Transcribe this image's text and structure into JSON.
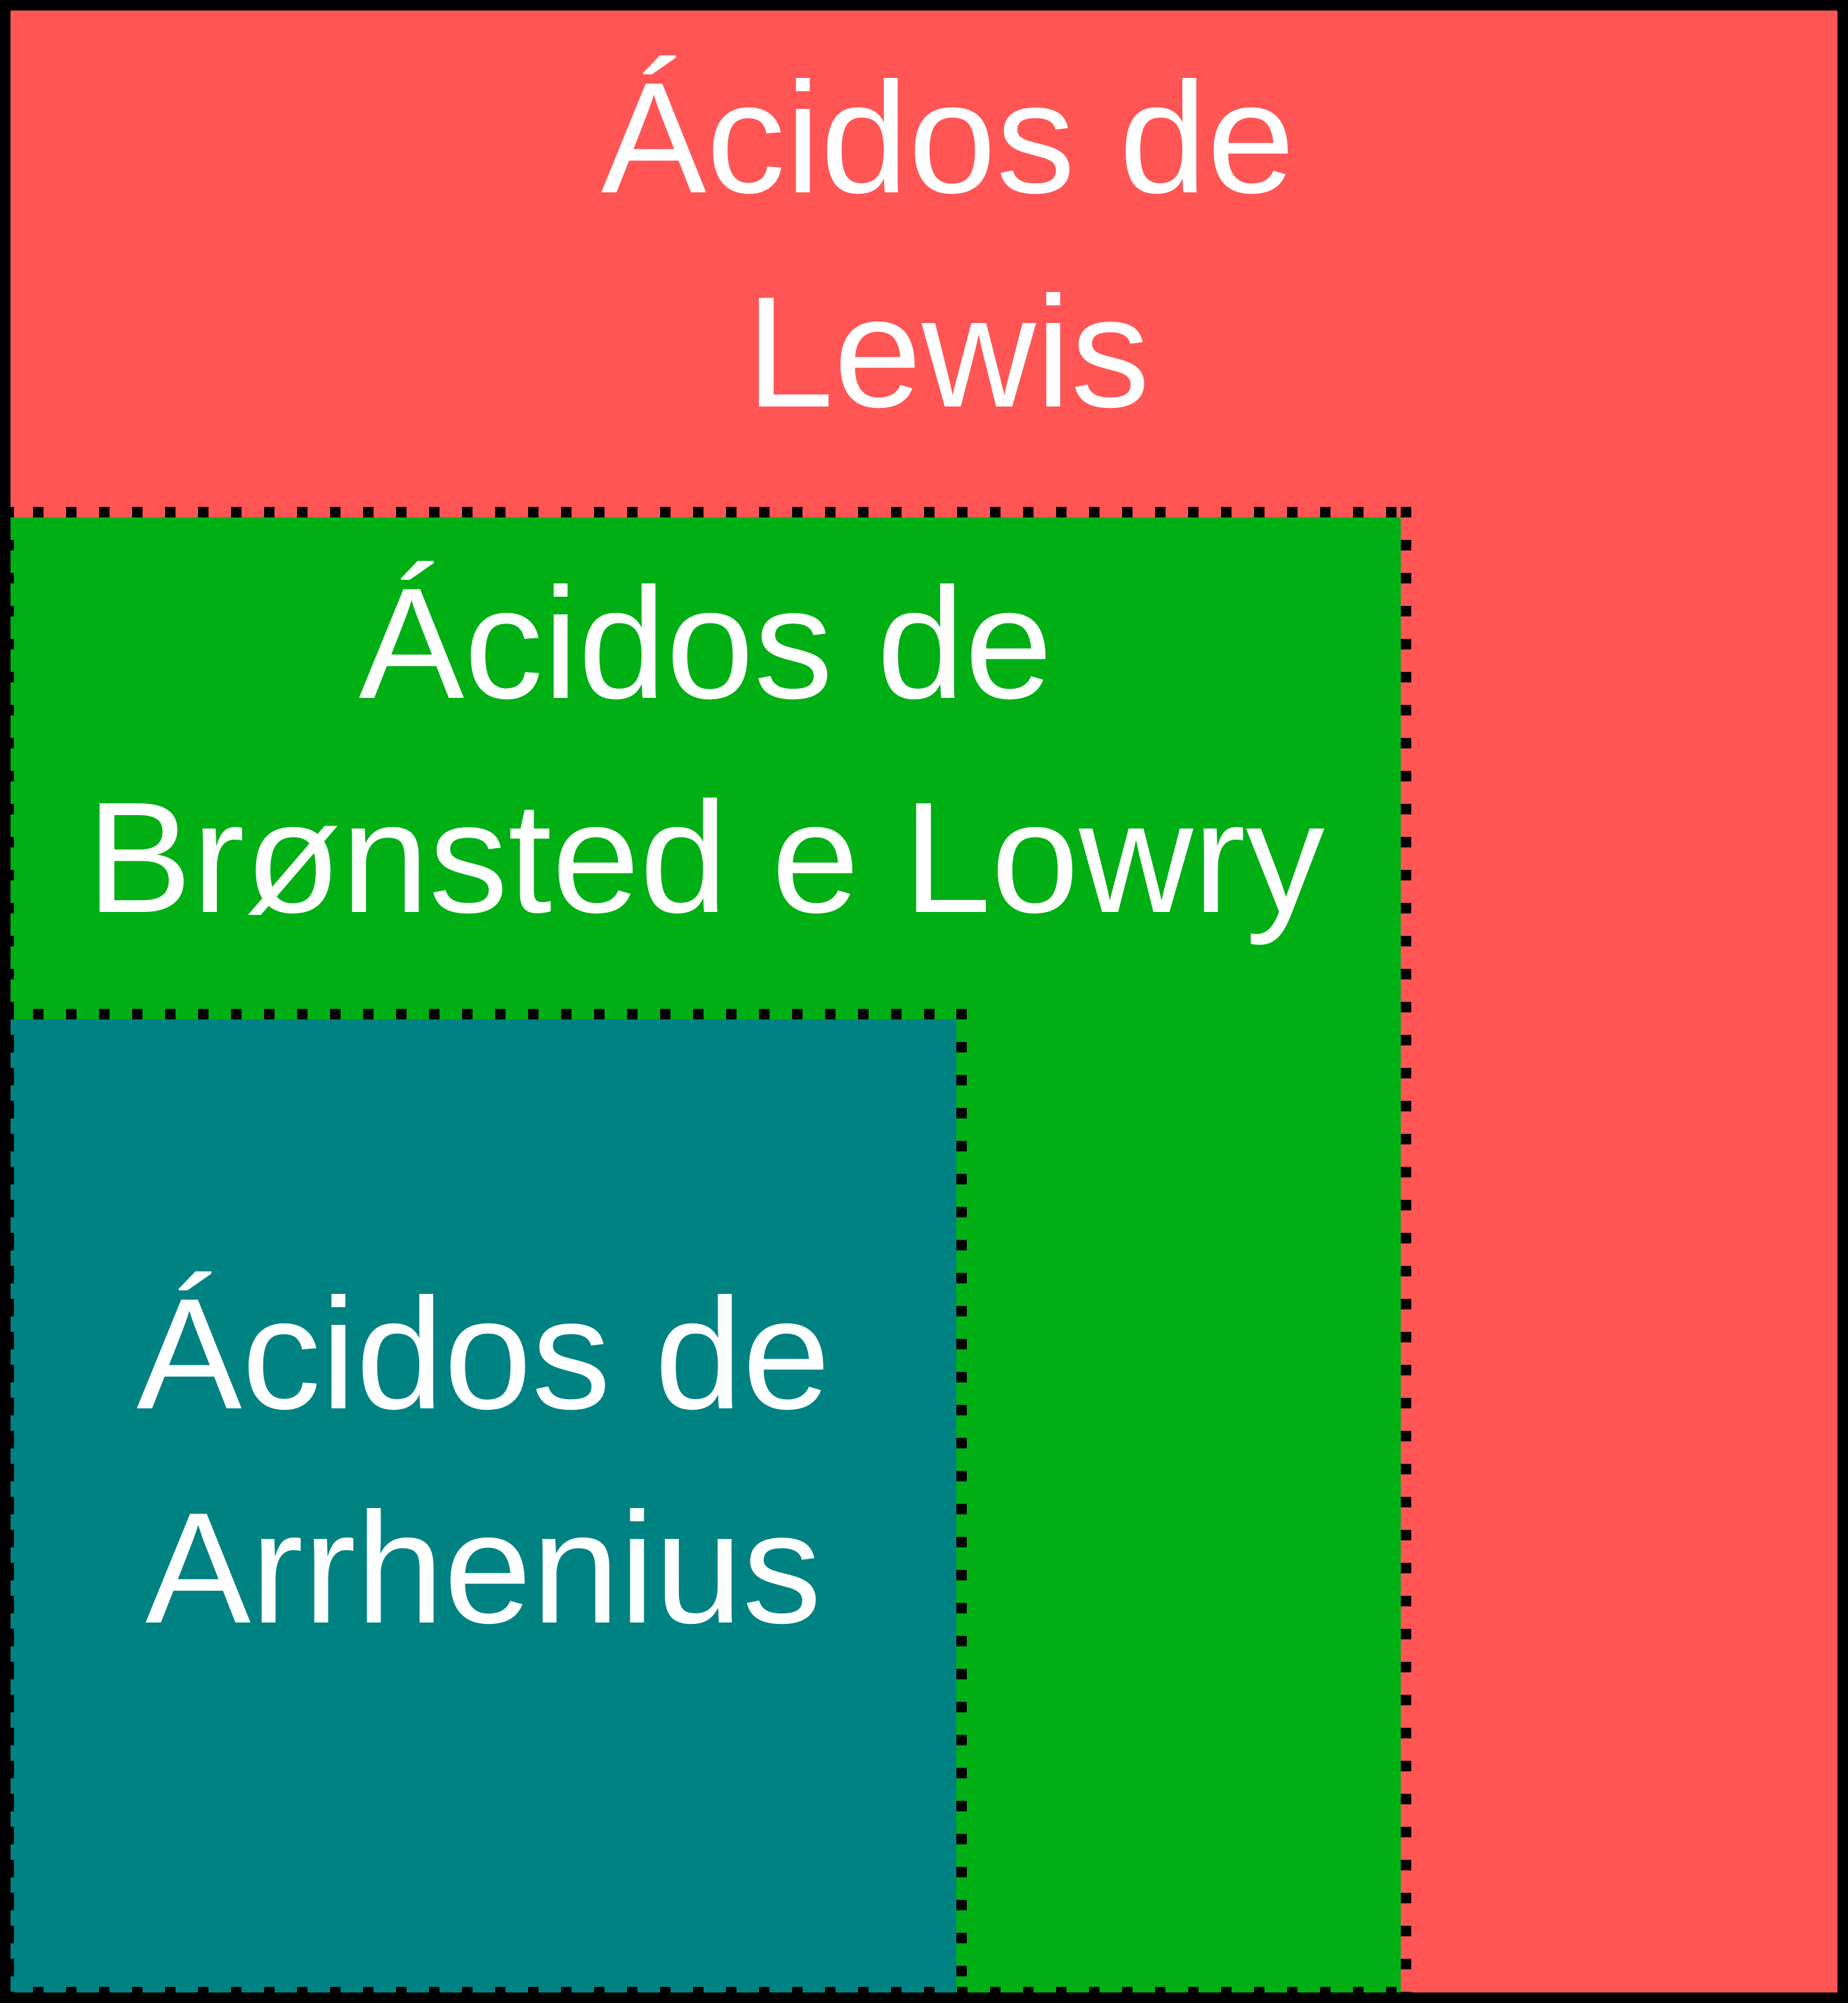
{
  "colors": {
    "frame": "#000000",
    "lewis_fill": "#FF5555",
    "bronsted_fill": "#00AF14",
    "arrhenius_fill": "#008283",
    "label_text": "#FFFFFF",
    "dotted_border": "#000000"
  },
  "diagram": {
    "type": "nested-euler",
    "sets": {
      "lewis": {
        "label_line1": "Ácidos de",
        "label_line2": "Lewis"
      },
      "bronsted": {
        "label_line1": "Ácidos de",
        "label_line2": "Brønsted e Lowry"
      },
      "arrhenius": {
        "label_line1": "Ácidos de",
        "label_line2": "Arrhenius"
      }
    }
  }
}
